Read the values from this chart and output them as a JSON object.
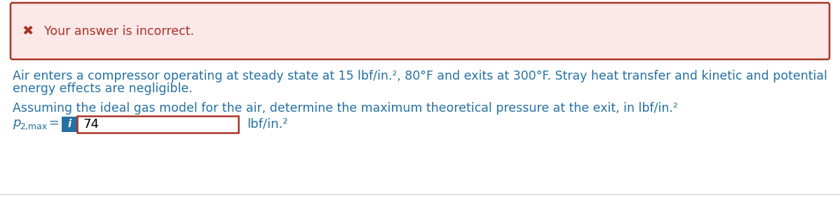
{
  "error_banner_text": "Your answer is incorrect.",
  "error_banner_bg": "#fce8e8",
  "error_banner_border": "#a93226",
  "error_text_color": "#a93226",
  "body_text_color": "#2471a3",
  "x_mark": "✖",
  "paragraph1_line1": "Air enters a compressor operating at steady state at 15 lbf/in.², 80°F and exits at 300°F. Stray heat transfer and kinetic and potential",
  "paragraph1_line2": "energy effects are negligible.",
  "paragraph2": "Assuming the ideal gas model for the air, determine the maximum theoretical pressure at the exit, in lbf/in.²",
  "label_italic": "p",
  "label_sub": "2,max",
  "label_eq": " =",
  "input_value": "74",
  "unit_text": "lbf/in.²",
  "info_icon_bg": "#2471a3",
  "info_icon_text": "i",
  "input_border": "#a93226",
  "background_color": "#ffffff",
  "font_size_banner": 12.5,
  "font_size_body": 12.5,
  "font_size_label": 13,
  "font_size_sub": 9,
  "font_size_icon": 11
}
